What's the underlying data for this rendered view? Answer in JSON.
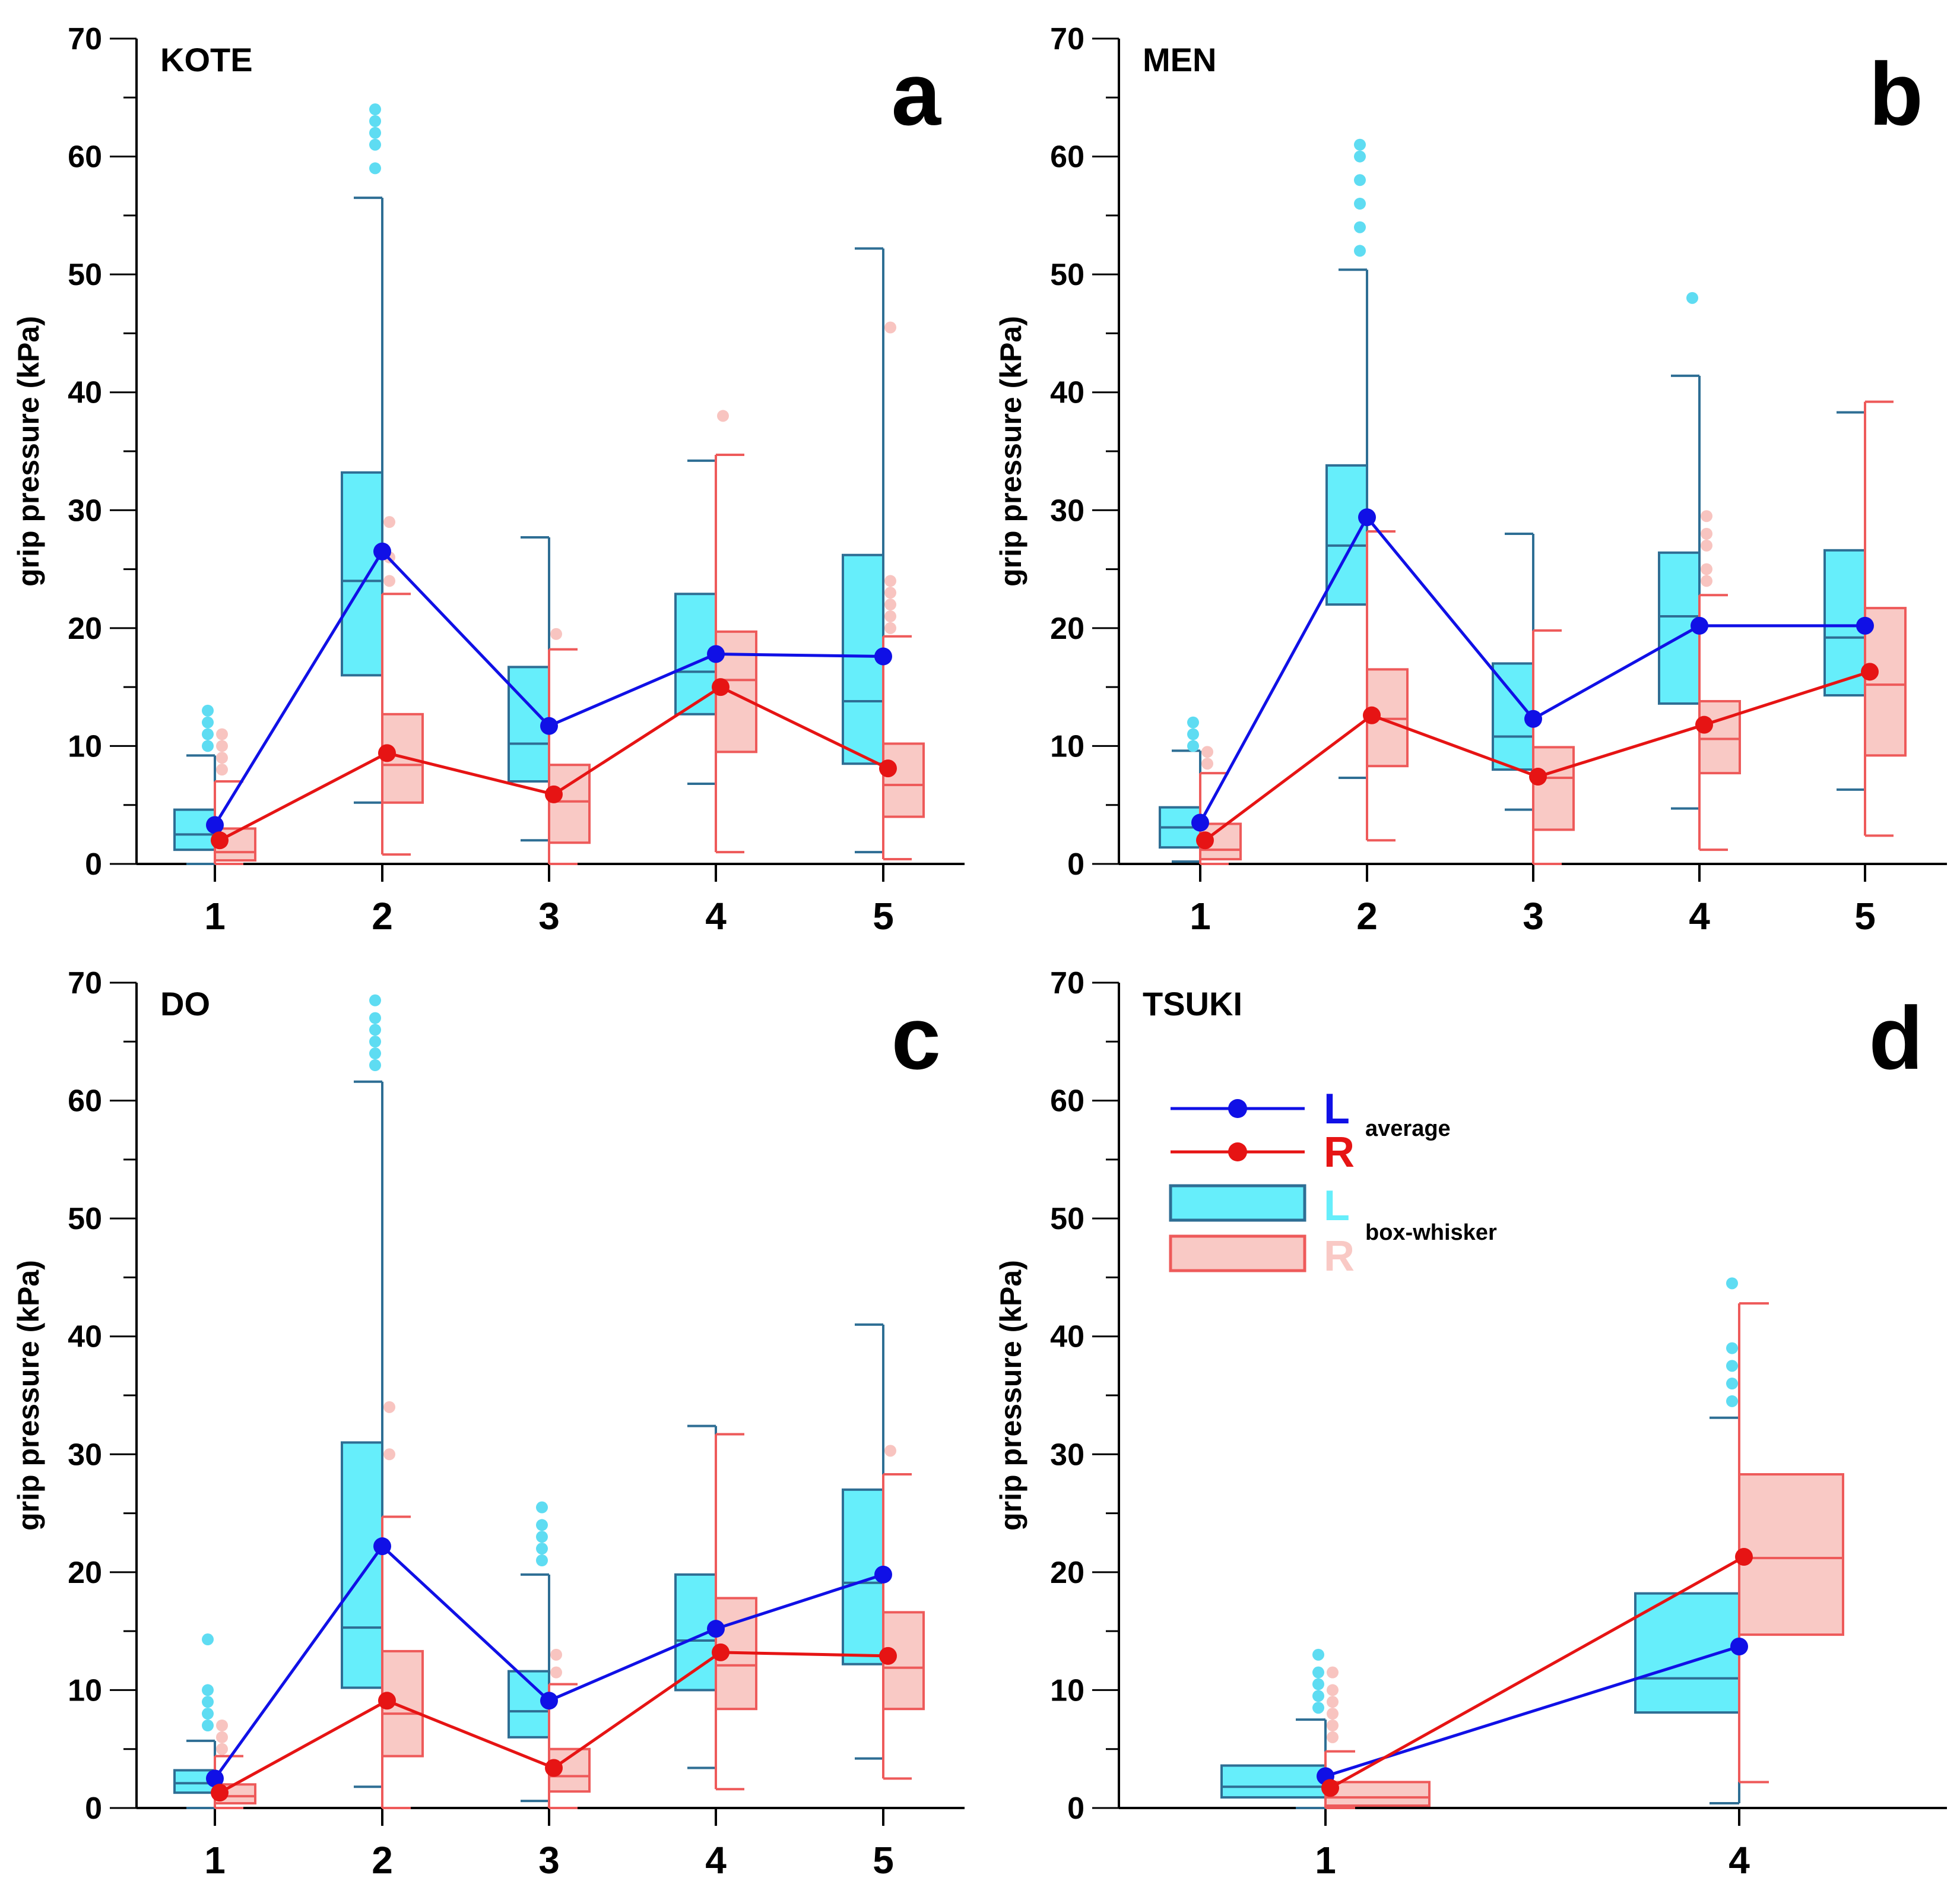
{
  "colors": {
    "l_box_fill": "#66EEFB",
    "l_box_stroke": "#2E6E94",
    "r_box_fill": "#F9C9C5",
    "r_box_stroke": "#EE5A5A",
    "l_outlier": "#5EDCF2",
    "r_outlier": "#F8C4C0",
    "l_line": "#1010E6",
    "r_line": "#E61414"
  },
  "legend": {
    "l_average": "L",
    "r_average": "R",
    "average_label": "average",
    "l_box": "L",
    "r_box": "R",
    "box_label": "box-whisker"
  },
  "chart_data": [
    {
      "type": "box",
      "panel": "a",
      "title": "KOTE",
      "ylabel": "grip pressure (kPa)",
      "ylim": [
        0,
        70
      ],
      "yticks": [
        0,
        10,
        20,
        30,
        40,
        50,
        60,
        70
      ],
      "categories": [
        "1",
        "2",
        "3",
        "4",
        "5"
      ],
      "series": [
        {
          "name": "L",
          "boxes": [
            {
              "category": "1",
              "min": 0,
              "q1": 1.2,
              "median": 2.5,
              "q3": 4.6,
              "max": 9.2,
              "outliers": [
                10,
                11,
                12,
                13
              ]
            },
            {
              "category": "2",
              "min": 5.2,
              "q1": 16,
              "median": 24,
              "q3": 33.2,
              "max": 56.5,
              "outliers": [
                59,
                61,
                62,
                63,
                64
              ]
            },
            {
              "category": "3",
              "min": 2,
              "q1": 7,
              "median": 10.2,
              "q3": 16.7,
              "max": 27.7,
              "outliers": []
            },
            {
              "category": "4",
              "min": 6.8,
              "q1": 12.7,
              "median": 16.3,
              "q3": 22.9,
              "max": 34.2,
              "outliers": []
            },
            {
              "category": "5",
              "min": 1,
              "q1": 8.5,
              "median": 13.8,
              "q3": 26.2,
              "max": 52.2,
              "outliers": []
            }
          ],
          "average": [
            3.3,
            26.5,
            11.7,
            17.8,
            17.6
          ]
        },
        {
          "name": "R",
          "boxes": [
            {
              "category": "1",
              "min": 0,
              "q1": 0.3,
              "median": 1,
              "q3": 3,
              "max": 7,
              "outliers": [
                8,
                9,
                10,
                11
              ]
            },
            {
              "category": "2",
              "min": 0.8,
              "q1": 5.2,
              "median": 8.4,
              "q3": 12.7,
              "max": 22.9,
              "outliers": [
                24,
                26,
                29
              ]
            },
            {
              "category": "3",
              "min": 0,
              "q1": 1.8,
              "median": 5.3,
              "q3": 8.4,
              "max": 18.2,
              "outliers": [
                19.5
              ]
            },
            {
              "category": "4",
              "min": 1,
              "q1": 9.5,
              "median": 15.6,
              "q3": 19.7,
              "max": 34.7,
              "outliers": [
                38
              ]
            },
            {
              "category": "5",
              "min": 0.4,
              "q1": 4,
              "median": 6.7,
              "q3": 10.2,
              "max": 19.3,
              "outliers": [
                20,
                21,
                22,
                23,
                24,
                45.5
              ]
            }
          ],
          "average": [
            2,
            9.4,
            5.9,
            15,
            8.1
          ]
        }
      ]
    },
    {
      "type": "box",
      "panel": "b",
      "title": "MEN",
      "ylabel": "grip pressure (kPa)",
      "ylim": [
        0,
        70
      ],
      "yticks": [
        0,
        10,
        20,
        30,
        40,
        50,
        60,
        70
      ],
      "categories": [
        "1",
        "2",
        "3",
        "4",
        "5"
      ],
      "series": [
        {
          "name": "L",
          "boxes": [
            {
              "category": "1",
              "min": 0.2,
              "q1": 1.4,
              "median": 3.1,
              "q3": 4.8,
              "max": 9.6,
              "outliers": [
                10,
                11,
                12
              ]
            },
            {
              "category": "2",
              "min": 7.3,
              "q1": 22,
              "median": 27,
              "q3": 33.8,
              "max": 50.4,
              "outliers": [
                52,
                54,
                56,
                58,
                60,
                61
              ]
            },
            {
              "category": "3",
              "min": 4.6,
              "q1": 8,
              "median": 10.8,
              "q3": 17,
              "max": 28,
              "outliers": []
            },
            {
              "category": "4",
              "min": 4.7,
              "q1": 13.6,
              "median": 21,
              "q3": 26.4,
              "max": 41.4,
              "outliers": [
                48
              ]
            },
            {
              "category": "5",
              "min": 6.3,
              "q1": 14.3,
              "median": 19.2,
              "q3": 26.6,
              "max": 38.3,
              "outliers": []
            }
          ],
          "average": [
            3.5,
            29.4,
            12.3,
            20.2,
            20.2
          ]
        },
        {
          "name": "R",
          "boxes": [
            {
              "category": "1",
              "min": 0,
              "q1": 0.4,
              "median": 1.2,
              "q3": 3.4,
              "max": 7.7,
              "outliers": [
                8.5,
                9.5
              ]
            },
            {
              "category": "2",
              "min": 2,
              "q1": 8.3,
              "median": 12.3,
              "q3": 16.5,
              "max": 28.2,
              "outliers": []
            },
            {
              "category": "3",
              "min": 0,
              "q1": 2.9,
              "median": 7.3,
              "q3": 9.9,
              "max": 19.8,
              "outliers": []
            },
            {
              "category": "4",
              "min": 1.2,
              "q1": 7.7,
              "median": 10.6,
              "q3": 13.8,
              "max": 22.8,
              "outliers": [
                24,
                25,
                27,
                28,
                29.5
              ]
            },
            {
              "category": "5",
              "min": 2.4,
              "q1": 9.2,
              "median": 15.2,
              "q3": 21.7,
              "max": 39.2,
              "outliers": []
            }
          ],
          "average": [
            2,
            12.6,
            7.4,
            11.8,
            16.3
          ]
        }
      ]
    },
    {
      "type": "box",
      "panel": "c",
      "title": "DO",
      "ylabel": "grip pressure (kPa)",
      "ylim": [
        0,
        70
      ],
      "yticks": [
        0,
        10,
        20,
        30,
        40,
        50,
        60,
        70
      ],
      "categories": [
        "1",
        "2",
        "3",
        "4",
        "5"
      ],
      "series": [
        {
          "name": "L",
          "boxes": [
            {
              "category": "1",
              "min": 0,
              "q1": 1.3,
              "median": 2.1,
              "q3": 3.2,
              "max": 5.7,
              "outliers": [
                7,
                8,
                9,
                10,
                14.3
              ]
            },
            {
              "category": "2",
              "min": 1.8,
              "q1": 10.2,
              "median": 15.3,
              "q3": 31,
              "max": 61.6,
              "outliers": [
                63,
                64,
                65,
                66,
                67,
                68.5
              ]
            },
            {
              "category": "3",
              "min": 0.6,
              "q1": 6,
              "median": 8.2,
              "q3": 11.6,
              "max": 19.8,
              "outliers": [
                21,
                22,
                23,
                24,
                25.5
              ]
            },
            {
              "category": "4",
              "min": 3.4,
              "q1": 10,
              "median": 14.2,
              "q3": 19.8,
              "max": 32.4,
              "outliers": []
            },
            {
              "category": "5",
              "min": 4.2,
              "q1": 12.2,
              "median": 19.1,
              "q3": 27,
              "max": 41,
              "outliers": []
            }
          ],
          "average": [
            2.5,
            22.2,
            9.1,
            15.2,
            19.8
          ]
        },
        {
          "name": "R",
          "boxes": [
            {
              "category": "1",
              "min": 0,
              "q1": 0.4,
              "median": 1,
              "q3": 2,
              "max": 4.4,
              "outliers": [
                5,
                6,
                7
              ]
            },
            {
              "category": "2",
              "min": 0,
              "q1": 4.4,
              "median": 8,
              "q3": 13.3,
              "max": 24.7,
              "outliers": [
                30,
                34
              ]
            },
            {
              "category": "3",
              "min": 0,
              "q1": 1.4,
              "median": 2.7,
              "q3": 5,
              "max": 10.5,
              "outliers": [
                11.5,
                13
              ]
            },
            {
              "category": "4",
              "min": 1.6,
              "q1": 8.4,
              "median": 12.1,
              "q3": 17.8,
              "max": 31.7,
              "outliers": []
            },
            {
              "category": "5",
              "min": 2.5,
              "q1": 8.4,
              "median": 11.9,
              "q3": 16.6,
              "max": 28.3,
              "outliers": [
                30.3
              ]
            }
          ],
          "average": [
            1.3,
            9.1,
            3.4,
            13.2,
            12.9
          ]
        }
      ]
    },
    {
      "type": "box",
      "panel": "d",
      "title": "TSUKI",
      "ylabel": "grip pressure (kPa)",
      "ylim": [
        0,
        70
      ],
      "yticks": [
        0,
        10,
        20,
        30,
        40,
        50,
        60,
        70
      ],
      "categories": [
        "1",
        "4"
      ],
      "series": [
        {
          "name": "L",
          "boxes": [
            {
              "category": "1",
              "min": 0,
              "q1": 0.9,
              "median": 1.8,
              "q3": 3.6,
              "max": 7.5,
              "outliers": [
                8.5,
                9.5,
                10.5,
                11.5,
                13
              ]
            },
            {
              "category": "4",
              "min": 0.4,
              "q1": 8.1,
              "median": 11,
              "q3": 18.2,
              "max": 33.1,
              "outliers": [
                34.5,
                36,
                37.5,
                39,
                44.5
              ]
            }
          ],
          "average": [
            2.7,
            13.7
          ]
        },
        {
          "name": "R",
          "boxes": [
            {
              "category": "1",
              "min": 0,
              "q1": 0.2,
              "median": 0.9,
              "q3": 2.2,
              "max": 4.8,
              "outliers": [
                6,
                7,
                8,
                9,
                10,
                11.5
              ]
            },
            {
              "category": "4",
              "min": 2.2,
              "q1": 14.7,
              "median": 21.2,
              "q3": 28.3,
              "max": 42.8,
              "outliers": []
            }
          ],
          "average": [
            1.7,
            21.3
          ]
        }
      ]
    }
  ]
}
